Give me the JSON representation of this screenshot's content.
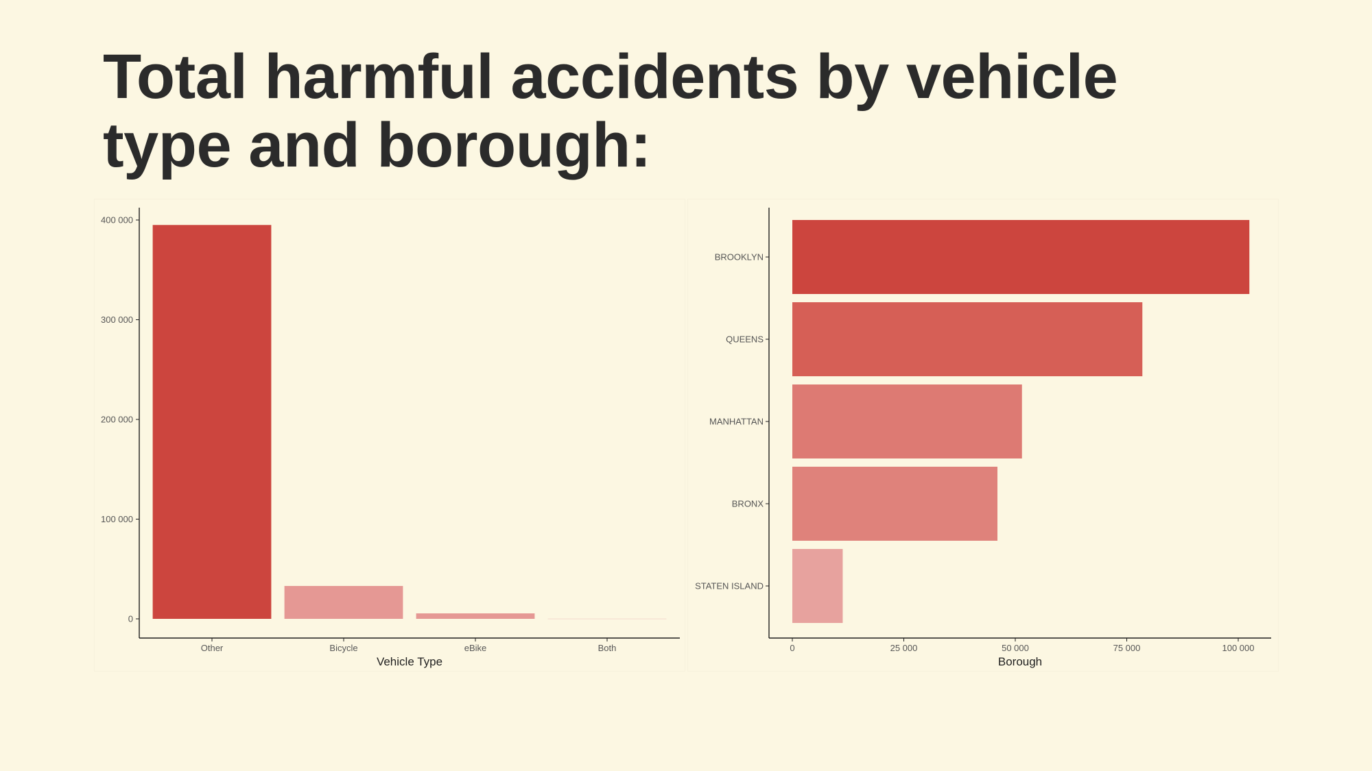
{
  "page": {
    "title": "Total harmful accidents by vehicle type and borough:",
    "background": "#fcf7e2"
  },
  "chart_data": [
    {
      "type": "bar",
      "orientation": "vertical",
      "categories": [
        "Other",
        "Bicycle",
        "eBike",
        "Both"
      ],
      "values": [
        395000,
        33000,
        5500,
        300
      ],
      "colors": [
        "#cc453e",
        "#e59894",
        "#e59894",
        "#f4d8cc"
      ],
      "xlabel": "Vehicle Type",
      "ylabel": "",
      "ylim": [
        0,
        400000
      ],
      "yticks": [
        0,
        100000,
        200000,
        300000,
        400000
      ],
      "ytick_labels": [
        "0",
        "100 000",
        "200 000",
        "300 000",
        "400 000"
      ],
      "grid": false,
      "legend": "none"
    },
    {
      "type": "bar",
      "orientation": "horizontal",
      "categories": [
        "BROOKLYN",
        "QUEENS",
        "MANHATTAN",
        "BRONX",
        "STATEN ISLAND"
      ],
      "values": [
        102500,
        78500,
        51500,
        46000,
        11300
      ],
      "colors": [
        "#cc453e",
        "#d65f56",
        "#dd7a73",
        "#df827b",
        "#e7a29e"
      ],
      "xlabel": "Borough",
      "ylabel": "",
      "xlim": [
        0,
        107000
      ],
      "xticks": [
        0,
        25000,
        50000,
        75000,
        100000
      ],
      "xtick_labels": [
        "0",
        "25 000",
        "50 000",
        "75 000",
        "100 000"
      ],
      "grid": false,
      "legend": "none"
    }
  ]
}
